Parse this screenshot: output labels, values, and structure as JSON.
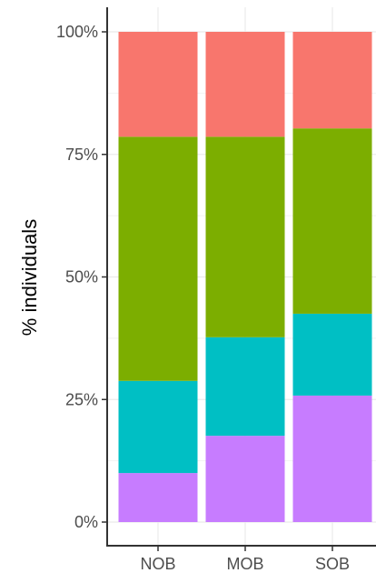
{
  "chart_data": {
    "type": "bar",
    "stacked": true,
    "percent": true,
    "categories": [
      "NOB",
      "MOB",
      "SOB"
    ],
    "series": [
      {
        "color": "#C77CFF",
        "values": [
          10,
          17.6,
          25.8
        ]
      },
      {
        "color": "#00BFC4",
        "values": [
          18.8,
          20.1,
          16.7
        ]
      },
      {
        "color": "#7CAE00",
        "values": [
          49.8,
          40.9,
          37.8
        ]
      },
      {
        "color": "#F8766D",
        "values": [
          21.4,
          21.4,
          19.7
        ]
      }
    ],
    "yticks": [
      "0%",
      "25%",
      "50%",
      "75%",
      "100%"
    ],
    "ytick_values": [
      0,
      25,
      50,
      75,
      100
    ],
    "ylabel": "% individuals",
    "xlabel": "",
    "ylim": [
      0,
      100
    ],
    "grid": true
  }
}
